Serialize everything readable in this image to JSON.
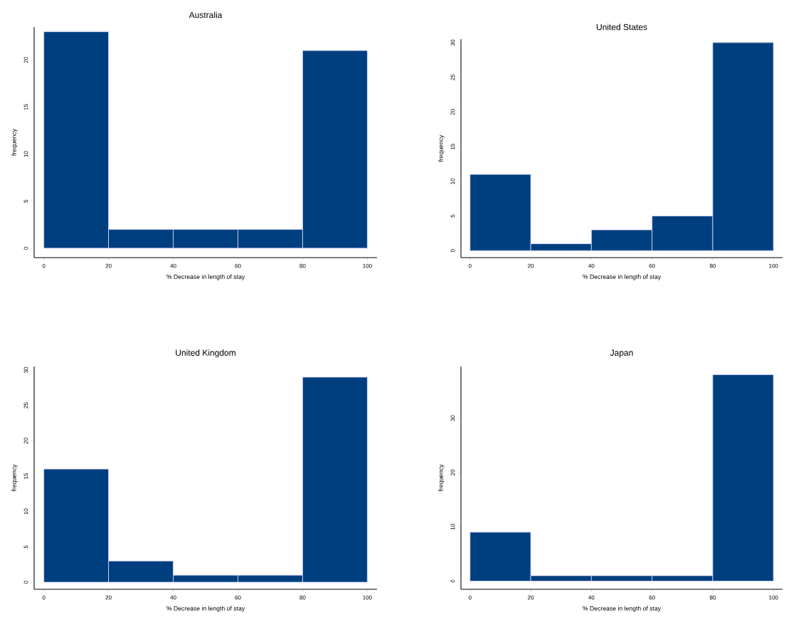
{
  "chart_data": [
    {
      "type": "histogram",
      "title": "Australia",
      "xlabel": "% Decrease in length of stay",
      "ylabel": "frequency",
      "bins": [
        0,
        20,
        40,
        60,
        80,
        100
      ],
      "values": [
        23,
        2,
        2,
        2,
        21
      ],
      "color": "#003f7f",
      "xlim": [
        -3,
        103
      ],
      "ylim": [
        -1,
        23.5
      ],
      "xticks": [
        0,
        20,
        40,
        60,
        80,
        100
      ],
      "yticks": [
        0,
        5,
        10,
        15,
        20
      ]
    },
    {
      "type": "histogram",
      "title": "United States",
      "xlabel": "% Decrease in length of stay",
      "ylabel": "frequency",
      "bins": [
        0,
        20,
        40,
        60,
        80,
        100
      ],
      "values": [
        11,
        1,
        3,
        5,
        30
      ],
      "color": "#003f7f",
      "xlim": [
        -3,
        103
      ],
      "ylim": [
        -1,
        30.5
      ],
      "xticks": [
        0,
        20,
        40,
        60,
        80,
        100
      ],
      "yticks": [
        0,
        5,
        10,
        15,
        20,
        25,
        30
      ]
    },
    {
      "type": "histogram",
      "title": "United Kingdom",
      "xlabel": "% Decrease in length of stay",
      "ylabel": "frequency",
      "bins": [
        0,
        20,
        40,
        60,
        80,
        100
      ],
      "values": [
        16,
        3,
        1,
        1,
        29
      ],
      "color": "#003f7f",
      "xlim": [
        -3,
        103
      ],
      "ylim": [
        -1,
        30.5
      ],
      "xticks": [
        0,
        20,
        40,
        60,
        80,
        100
      ],
      "yticks": [
        0,
        5,
        10,
        15,
        20,
        25,
        30
      ]
    },
    {
      "type": "histogram",
      "title": "Japan",
      "xlabel": "% Decrease in length of stay",
      "ylabel": "frequency",
      "bins": [
        0,
        20,
        40,
        60,
        80,
        100
      ],
      "values": [
        9,
        1,
        1,
        1,
        38
      ],
      "color": "#003f7f",
      "xlim": [
        -3,
        103
      ],
      "ylim": [
        -1.5,
        39.5
      ],
      "xticks": [
        0,
        20,
        40,
        60,
        80,
        100
      ],
      "yticks": [
        0,
        10,
        20,
        30
      ]
    }
  ]
}
